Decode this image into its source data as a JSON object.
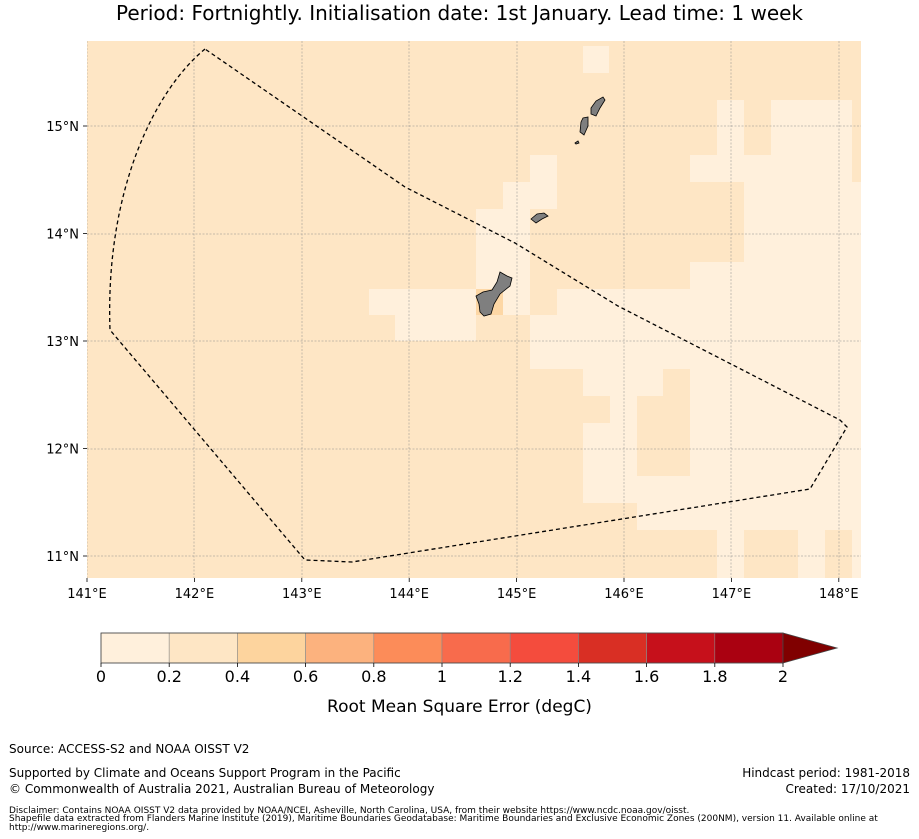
{
  "title": "Period: Fortnightly. Initialisation date: 1st January. Lead time: 1 week",
  "map": {
    "lon_range": [
      141,
      148.2
    ],
    "lat_range": [
      10.8,
      15.8
    ],
    "x_ticks": [
      "141°E",
      "142°E",
      "143°E",
      "144°E",
      "145°E",
      "146°E",
      "147°E",
      "148°E"
    ],
    "y_ticks": [
      "15°N",
      "14°N",
      "13°N",
      "12°N",
      "11°N"
    ],
    "colors": {
      "base": "#fee6c5",
      "light": "#fff0dc",
      "mid": "#fdd7a5",
      "land": "#808080"
    }
  },
  "colorbar": {
    "ticks": [
      "0",
      "0.2",
      "0.4",
      "0.6",
      "0.8",
      "1",
      "1.2",
      "1.4",
      "1.6",
      "1.8",
      "2"
    ],
    "colors": [
      "#fff0dc",
      "#fee6c5",
      "#fdd49e",
      "#fcb27e",
      "#fc8c59",
      "#f86b4c",
      "#f44c3d",
      "#d92f24",
      "#c6101b",
      "#aa0111",
      "#800000"
    ],
    "label": "Root Mean Square Error (degC)"
  },
  "footer": {
    "source": "Source: ACCESS-S2 and NOAA OISST V2",
    "support": "Supported by Climate and Oceans Support Program in the Pacific",
    "copyright": "© Commonwealth of Australia 2021, Australian Bureau of Meteorology",
    "hindcast": "Hindcast period: 1981-2018",
    "created": "Created: 17/10/2021",
    "disclaimer1": "Disclaimer: Contains NOAA OISST V2 data provided by NOAA/NCEI, Asheville, North Carolina, USA, from their website https://www.ncdc.noaa.gov/oisst.",
    "disclaimer2": "Shapefile data extracted from Flanders Marine Institute (2019), Maritime Boundaries Geodatabase: Maritime Boundaries and Exclusive Economic Zones (200NM), version 11. Available online at",
    "disclaimer3": "http://www.marineregions.org/."
  }
}
